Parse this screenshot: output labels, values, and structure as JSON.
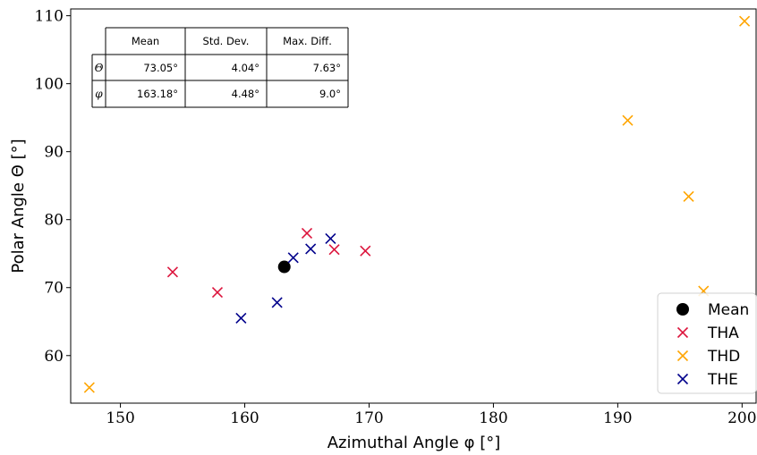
{
  "chart_data": {
    "type": "scatter",
    "xlabel": "Azimuthal Angle φ [°]",
    "ylabel": "Polar Angle Θ [°]",
    "xlim": [
      146,
      201.2
    ],
    "ylim": [
      53,
      111
    ],
    "xticks": [
      150,
      160,
      170,
      180,
      190,
      200
    ],
    "yticks": [
      60,
      70,
      80,
      90,
      100,
      110
    ],
    "grid": false,
    "legend_position": "bottom-right",
    "series": [
      {
        "name": "Mean",
        "marker": "circle",
        "color": "#000000",
        "points": [
          {
            "x": 163.18,
            "y": 73.05
          }
        ]
      },
      {
        "name": "THA",
        "marker": "x",
        "color": "#dc143c",
        "points": [
          {
            "x": 154.2,
            "y": 72.3
          },
          {
            "x": 157.8,
            "y": 69.3
          },
          {
            "x": 165.0,
            "y": 78.0
          },
          {
            "x": 167.2,
            "y": 75.6
          },
          {
            "x": 169.7,
            "y": 75.4
          }
        ]
      },
      {
        "name": "THD",
        "marker": "x",
        "color": "#ffa500",
        "points": [
          {
            "x": 147.5,
            "y": 55.3
          },
          {
            "x": 190.8,
            "y": 94.6
          },
          {
            "x": 195.7,
            "y": 83.4
          },
          {
            "x": 196.9,
            "y": 69.5
          },
          {
            "x": 200.2,
            "y": 109.2
          }
        ]
      },
      {
        "name": "THE",
        "marker": "x",
        "color": "#00008b",
        "points": [
          {
            "x": 159.7,
            "y": 65.5
          },
          {
            "x": 162.6,
            "y": 67.8
          },
          {
            "x": 163.9,
            "y": 74.4
          },
          {
            "x": 165.3,
            "y": 75.7
          },
          {
            "x": 166.9,
            "y": 77.2
          }
        ]
      }
    ],
    "table": {
      "columns": [
        "",
        "Mean",
        "Std. Dev.",
        "Max. Diff."
      ],
      "rows": [
        {
          "label": "Θ",
          "mean": "73.05°",
          "std": "4.04°",
          "max": "7.63°"
        },
        {
          "label": "φ",
          "mean": "163.18°",
          "std": "4.48°",
          "max": "9.0°"
        }
      ]
    }
  }
}
